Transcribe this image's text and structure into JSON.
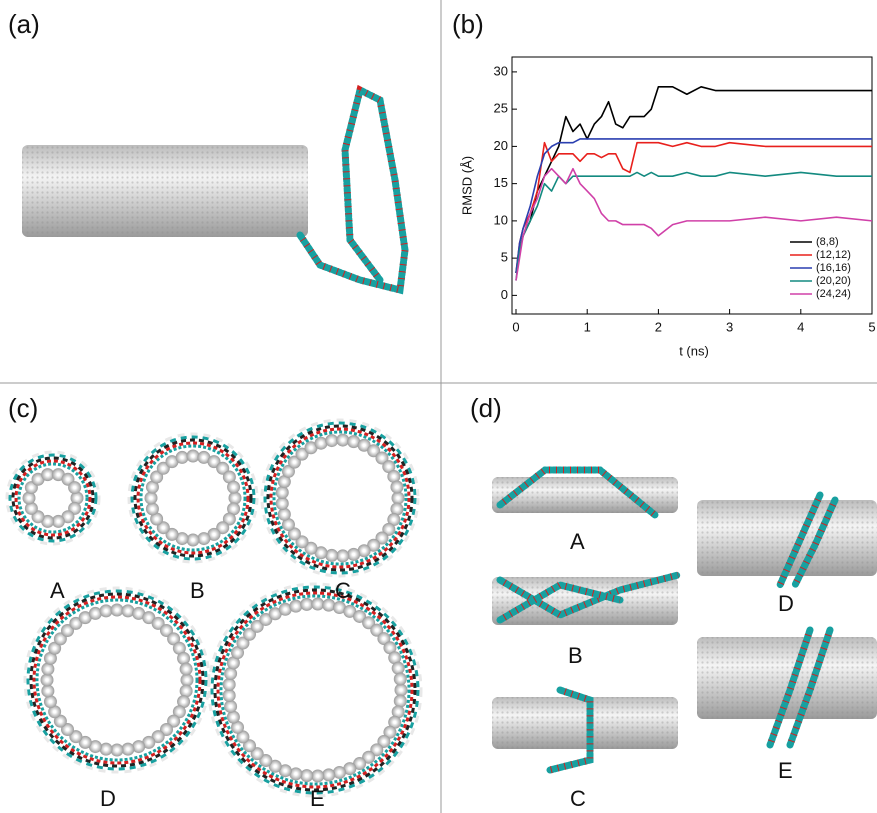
{
  "chart_data": {
    "type": "line",
    "x_label": "t (ns)",
    "y_label": "RMSD (Å)",
    "x": [
      0,
      0.05,
      0.1,
      0.2,
      0.3,
      0.4,
      0.5,
      0.6,
      0.7,
      0.8,
      0.9,
      1.0,
      1.1,
      1.2,
      1.3,
      1.4,
      1.5,
      1.6,
      1.7,
      1.8,
      1.9,
      2.0,
      2.2,
      2.4,
      2.6,
      2.8,
      3.0,
      3.5,
      4.0,
      4.5,
      5.0
    ],
    "series": [
      {
        "name": "(8,8)",
        "color": "#000000",
        "values": [
          3,
          6,
          8,
          10,
          14,
          16,
          18,
          20,
          24,
          22,
          23,
          21,
          23,
          24,
          26,
          23,
          22.5,
          24,
          24,
          24,
          25,
          28,
          28,
          27,
          28,
          27.5,
          27.5,
          27.5,
          27.5,
          27.5,
          27.5
        ]
      },
      {
        "name": "(12,12)",
        "color": "#e8201c",
        "values": [
          3,
          7,
          9,
          11,
          14,
          20.5,
          18,
          19,
          19,
          19,
          18,
          19,
          19,
          18.5,
          19,
          19,
          17,
          16.5,
          20.5,
          20.5,
          20.5,
          20.5,
          20,
          20.5,
          20,
          20,
          20.5,
          20,
          20,
          20,
          20
        ]
      },
      {
        "name": "(16,16)",
        "color": "#2a3fb0",
        "values": [
          3,
          7,
          9,
          12,
          16,
          19,
          20,
          20.5,
          20.5,
          20.5,
          21,
          21,
          21,
          21,
          21,
          21,
          21,
          21,
          21,
          21,
          21,
          21,
          21,
          21,
          21,
          21,
          21,
          21,
          21,
          21,
          21
        ]
      },
      {
        "name": "(20,20)",
        "color": "#138a80",
        "values": [
          2,
          6,
          8,
          10,
          12,
          15,
          14,
          16,
          15,
          16,
          16,
          16,
          16,
          16,
          16,
          16,
          16,
          16,
          16.5,
          16,
          16.5,
          16,
          16,
          16.5,
          16,
          16,
          16.5,
          16,
          16.5,
          16,
          16
        ]
      },
      {
        "name": "(24,24)",
        "color": "#d040a8",
        "values": [
          2,
          5,
          8,
          11,
          13,
          16,
          17,
          16,
          15,
          17,
          15,
          14,
          13,
          11,
          10,
          10,
          9.5,
          9.5,
          9.5,
          9.5,
          9,
          8,
          9.5,
          10,
          10,
          10,
          10,
          10.5,
          10,
          10.5,
          10
        ]
      }
    ],
    "xlim": [
      0,
      5
    ],
    "xticks": [
      0,
      1,
      2,
      3,
      4,
      5
    ],
    "ylim": [
      -2.5,
      32
    ],
    "yticks": [
      0,
      5,
      10,
      15,
      20,
      25,
      30
    ],
    "legend": "lower right"
  },
  "panel_labels": [
    "(a)",
    "(b)",
    "(c)",
    "(d)"
  ],
  "c_labels": [
    "A",
    "B",
    "C",
    "D",
    "E"
  ],
  "d_labels": [
    "A",
    "B",
    "C",
    "D",
    "E"
  ]
}
